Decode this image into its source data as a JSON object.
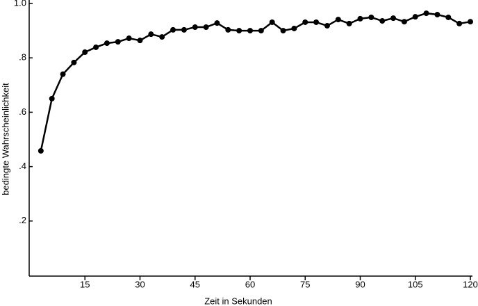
{
  "chart_data": {
    "type": "line",
    "x_label": "Zeit in Sekunden",
    "y_label": "bedingte Wahrscheinlichkeit",
    "x": [
      3,
      6,
      9,
      12,
      15,
      18,
      21,
      24,
      27,
      30,
      33,
      36,
      39,
      42,
      45,
      48,
      51,
      54,
      57,
      60,
      63,
      66,
      69,
      72,
      75,
      78,
      81,
      84,
      87,
      90,
      93,
      96,
      99,
      102,
      105,
      108,
      111,
      114,
      117,
      120
    ],
    "values": [
      0.458,
      0.65,
      0.74,
      0.783,
      0.821,
      0.839,
      0.854,
      0.859,
      0.872,
      0.864,
      0.887,
      0.877,
      0.903,
      0.903,
      0.913,
      0.913,
      0.928,
      0.903,
      0.9,
      0.9,
      0.9,
      0.931,
      0.9,
      0.908,
      0.931,
      0.931,
      0.918,
      0.941,
      0.926,
      0.944,
      0.949,
      0.936,
      0.946,
      0.933,
      0.951,
      0.964,
      0.959,
      0.949,
      0.926,
      0.933
    ],
    "color": "#000000",
    "xlim": [
      0,
      120
    ],
    "xticks": [
      15,
      30,
      45,
      60,
      75,
      90,
      105,
      120
    ],
    "ylim": [
      0,
      1
    ],
    "yticks": [
      {
        "value": 0.2,
        "label": ".2"
      },
      {
        "value": 0.4,
        "label": ".4"
      },
      {
        "value": 0.6,
        "label": ".6"
      },
      {
        "value": 0.8,
        "label": ".8"
      },
      {
        "value": 1,
        "label": "1.0"
      }
    ],
    "grid": false
  }
}
